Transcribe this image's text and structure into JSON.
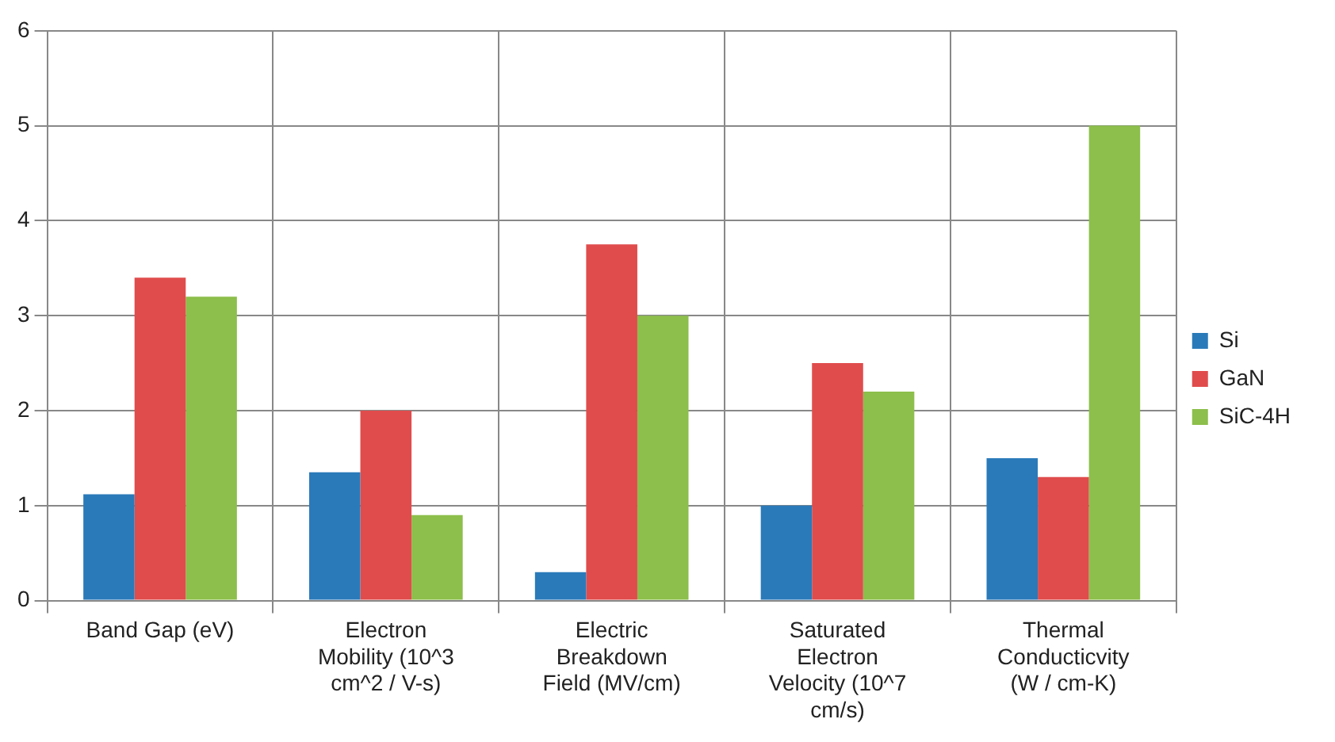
{
  "chart_data": {
    "type": "bar",
    "categories": [
      "Band Gap (eV)",
      "Electron Mobility (10^3 cm^2 / V-s)",
      "Electric Breakdown Field (MV/cm)",
      "Saturated Electron Velocity (10^7 cm/s)",
      "Thermal Conducticvity (W / cm-K)"
    ],
    "series": [
      {
        "name": "Si",
        "color": "#2a7ab9",
        "values": [
          1.12,
          1.35,
          0.3,
          1.0,
          1.5
        ]
      },
      {
        "name": "GaN",
        "color": "#e04c4c",
        "values": [
          3.4,
          2.0,
          3.75,
          2.5,
          1.3
        ]
      },
      {
        "name": "SiC-4H",
        "color": "#8cbf4b",
        "values": [
          3.2,
          0.9,
          3.0,
          2.2,
          5.0
        ]
      }
    ],
    "ylim": [
      0,
      6
    ],
    "yticks": [
      0,
      1,
      2,
      3,
      4,
      5,
      6
    ],
    "grid": true,
    "legend": "right"
  }
}
